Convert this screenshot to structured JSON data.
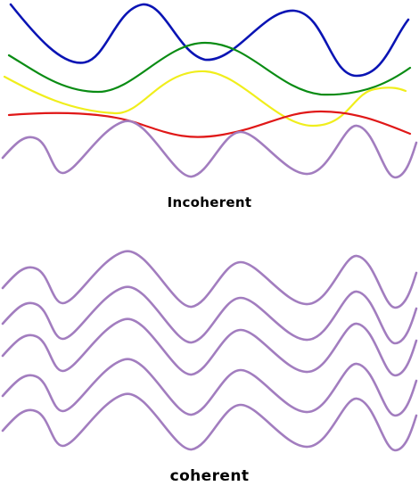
{
  "incoherent": {
    "label": "Incoherent",
    "waves": [
      {
        "name": "blue",
        "color": "#0a14b4"
      },
      {
        "name": "green",
        "color": "#0a8c14"
      },
      {
        "name": "yellow",
        "color": "#f0ee1c"
      },
      {
        "name": "red",
        "color": "#e01818"
      },
      {
        "name": "purple",
        "color": "#a27dbf"
      }
    ]
  },
  "coherent": {
    "label": "coherent",
    "wave_color": "#a27dbf",
    "wave_count": 5
  }
}
